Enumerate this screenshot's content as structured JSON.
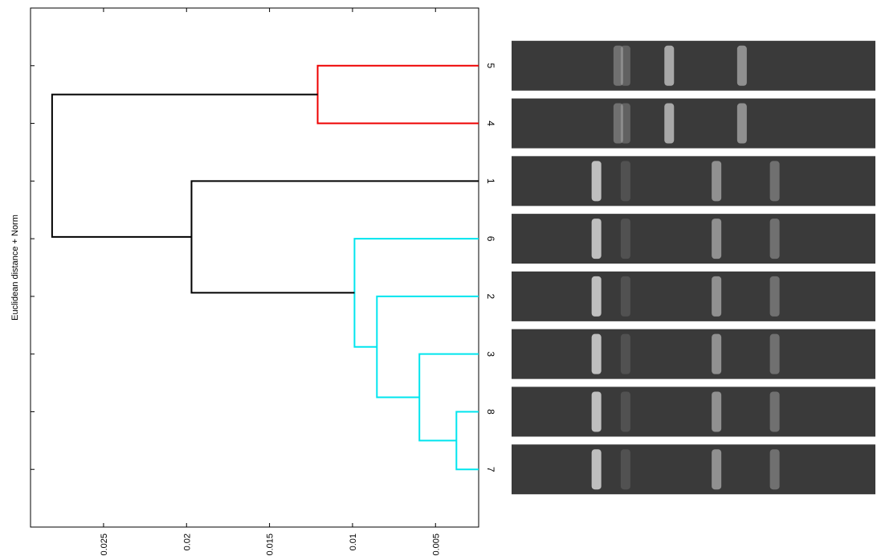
{
  "chart_data": {
    "type": "dendrogram",
    "y_label": "Euclidean distance + Norm",
    "leaves": [
      "5",
      "4",
      "1",
      "6",
      "2",
      "3",
      "8",
      "7"
    ],
    "merges": [
      {
        "children": [
          6,
          7
        ],
        "height": 0.00374,
        "color": "#00e5ee"
      },
      {
        "children": [
          5,
          8
        ],
        "height": 0.00597,
        "color": "#00e5ee"
      },
      {
        "children": [
          4,
          9
        ],
        "height": 0.00853,
        "color": "#00e5ee"
      },
      {
        "children": [
          3,
          10
        ],
        "height": 0.00988,
        "color": "#00e5ee"
      },
      {
        "children": [
          0,
          1
        ],
        "height": 0.0121,
        "color": "#ee0000"
      },
      {
        "children": [
          2,
          11
        ],
        "height": 0.0197,
        "color": "#000000"
      },
      {
        "children": [
          12,
          13
        ],
        "height": 0.0281,
        "color": "#000000"
      }
    ],
    "xlim": [
      0.0294,
      0.0024
    ],
    "xticks": [
      0.025,
      0.02,
      0.015,
      0.01,
      0.005
    ]
  }
}
